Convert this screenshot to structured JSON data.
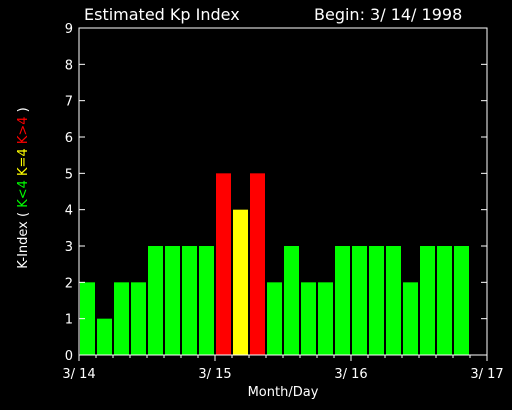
{
  "chart_data": {
    "type": "bar",
    "title": "Estimated Kp Index",
    "begin_label": "Begin: 3/ 14/ 1998",
    "xlabel": "Month/Day",
    "ylabel_prefix": "K-Index (",
    "ylabel_parts": [
      {
        "text": "K<4",
        "color": "#00ff00"
      },
      {
        "text": "K=4",
        "color": "#ffff00"
      },
      {
        "text": "K>4",
        "color": "#ff0000"
      }
    ],
    "ylabel_suffix": ")",
    "ylim": [
      0,
      9
    ],
    "yticks": [
      "0",
      "1",
      "2",
      "3",
      "4",
      "5",
      "6",
      "7",
      "8",
      "9"
    ],
    "x_tick_labels": [
      "3/ 14",
      "3/ 15",
      "3/ 16",
      "3/ 17"
    ],
    "bars_per_day": 8,
    "values": [
      2,
      1,
      2,
      2,
      3,
      3,
      3,
      3,
      5,
      4,
      5,
      2,
      3,
      2,
      2,
      3,
      3,
      3,
      3,
      2,
      3,
      3,
      3,
      0
    ],
    "colors": {
      "low": "#00ff00",
      "mid": "#ffff00",
      "high": "#ff0000",
      "axes": "#ffffff",
      "background": "#000000"
    },
    "grid": false
  }
}
